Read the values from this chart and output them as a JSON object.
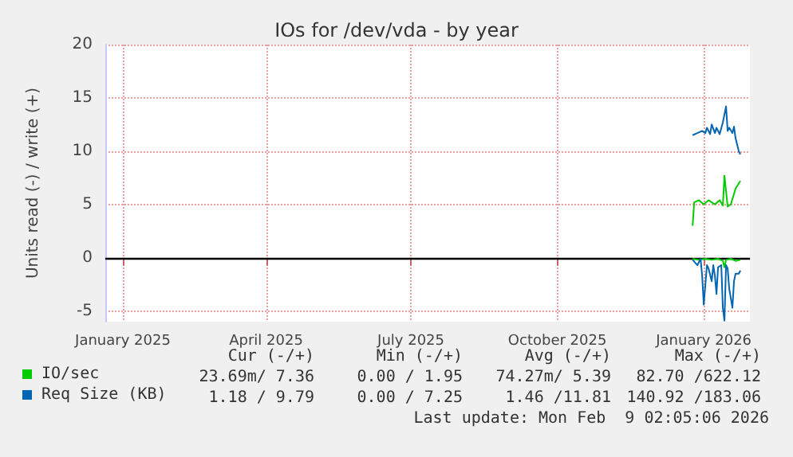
{
  "chart_data": {
    "type": "line",
    "title": "IOs for /dev/vda - by year",
    "ylabel": "Units read (-) / write (+)",
    "xlim": [
      "2024-12-21",
      "2026-01-30"
    ],
    "xticks": [
      {
        "value": "2025-01-01",
        "label": "January 2025"
      },
      {
        "value": "2025-04-01",
        "label": "April 2025"
      },
      {
        "value": "2025-07-01",
        "label": "July 2025"
      },
      {
        "value": "2025-10-01",
        "label": "October 2025"
      },
      {
        "value": "2026-01-01",
        "label": "January 2026"
      }
    ],
    "ylim": [
      -6,
      20
    ],
    "yticks": [
      -5,
      0,
      5,
      10,
      15,
      20
    ],
    "grid": true,
    "legend": "bottom left",
    "marker": "none",
    "line_style": "solid",
    "ref_lines": [
      {
        "axis": "y",
        "value": 0,
        "color": "#000000"
      }
    ],
    "series": [
      {
        "name": "IO/sec",
        "color": "#00cc00",
        "x": [
          "2025-12-25",
          "2025-12-26",
          "2025-12-29",
          "2026-01-01",
          "2026-01-04",
          "2026-01-06",
          "2026-01-08",
          "2026-01-11",
          "2026-01-13",
          "2026-01-14",
          "2026-01-16",
          "2026-01-18",
          "2026-01-21",
          "2026-01-24"
        ],
        "values": [
          3.0,
          5.2,
          5.4,
          5.0,
          5.4,
          5.2,
          5.0,
          5.4,
          4.9,
          7.7,
          4.8,
          5.0,
          6.5,
          7.2
        ]
      },
      {
        "name": "Req Size (KB)",
        "color": "#0066b3",
        "x": [
          "2025-12-25",
          "2025-12-28",
          "2025-12-31",
          "2026-01-02",
          "2026-01-03",
          "2026-01-05",
          "2026-01-06",
          "2026-01-08",
          "2026-01-09",
          "2026-01-11",
          "2026-01-13",
          "2026-01-15",
          "2026-01-16",
          "2026-01-17",
          "2026-01-19",
          "2026-01-20",
          "2026-01-21",
          "2026-01-23",
          "2026-01-24"
        ],
        "values": [
          11.5,
          11.7,
          11.9,
          11.7,
          12.2,
          11.6,
          12.5,
          11.7,
          12.2,
          11.6,
          12.7,
          14.2,
          11.9,
          12.2,
          11.7,
          12.3,
          11.2,
          10.0,
          9.7
        ]
      },
      {
        "color": "#00cc00",
        "x": [
          "2025-12-25",
          "2025-12-29",
          "2026-01-02",
          "2026-01-06",
          "2026-01-10",
          "2026-01-13",
          "2026-01-14",
          "2026-01-15",
          "2026-01-18",
          "2026-01-21",
          "2026-01-24"
        ],
        "values": [
          -0.1,
          -0.2,
          -0.1,
          -0.2,
          -0.1,
          -0.3,
          -0.9,
          -0.2,
          -0.1,
          -0.3,
          -0.2
        ]
      },
      {
        "color": "#0066b3",
        "x": [
          "2025-12-25",
          "2025-12-28",
          "2025-12-30",
          "2025-12-31",
          "2026-01-01",
          "2026-01-03",
          "2026-01-04",
          "2026-01-06",
          "2026-01-07",
          "2026-01-08",
          "2026-01-09",
          "2026-01-10",
          "2026-01-12",
          "2026-01-13",
          "2026-01-14",
          "2026-01-15",
          "2026-01-16",
          "2026-01-17",
          "2026-01-19",
          "2026-01-20",
          "2026-01-21",
          "2026-01-23",
          "2026-01-24"
        ],
        "values": [
          -0.2,
          -0.7,
          -0.1,
          -1.7,
          -4.4,
          -0.7,
          -1.0,
          -2.2,
          -0.7,
          -1.7,
          -3.4,
          -0.9,
          -0.7,
          -4.7,
          -5.9,
          -0.7,
          -1.0,
          -2.9,
          -4.7,
          -2.2,
          -1.5,
          -1.5,
          -1.2
        ]
      }
    ],
    "annotations": [
      "Cur (-/+)",
      "Min (-/+)",
      "Avg (-/+)",
      "Max (-/+)",
      "23.69m/ 7.36",
      "0.00 / 1.95",
      "74.27m/ 5.39",
      "82.70 /622.12",
      "1.18 / 9.79",
      "0.00 / 7.25",
      "1.46 /11.81",
      "140.92 /183.06",
      "Last update: Mon Feb  9 02:05:06 2026"
    ]
  }
}
